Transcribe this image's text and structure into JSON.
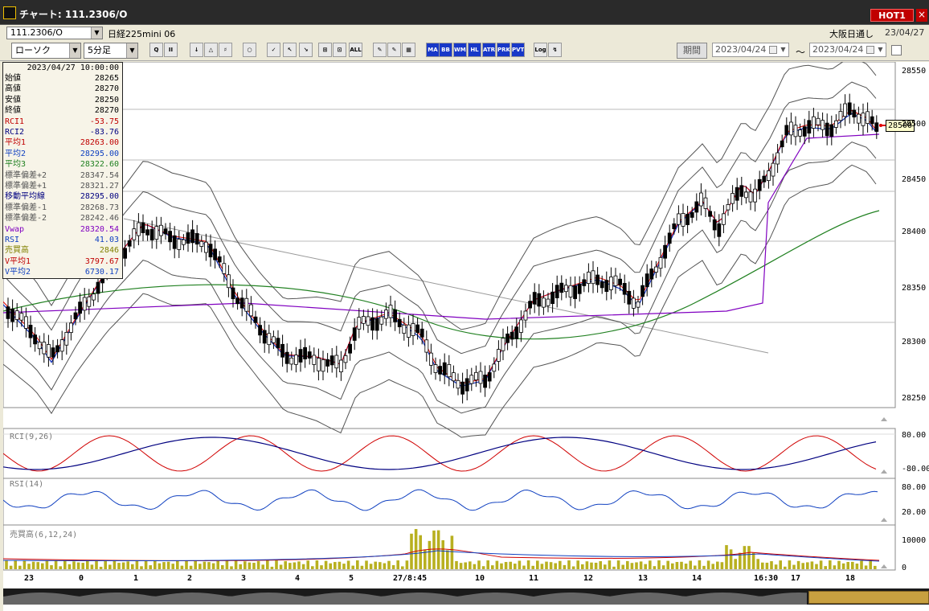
{
  "window": {
    "title": "チャート: 111.2306/O",
    "hot_label": "HOT1",
    "close": "×"
  },
  "header": {
    "symbol_code": "111.2306/O",
    "symbol_name": "日経225mini 06",
    "market": "大阪日通し",
    "date": "23/04/27"
  },
  "toolbar": {
    "chart_type": "ローソク",
    "interval": "5分足",
    "buttons": [
      "Q",
      "II",
      "↓",
      "△",
      "♯",
      "○",
      "✓",
      "↖",
      "↘",
      "⊞",
      "⊡",
      "ALL",
      "✎",
      "✎",
      "▦",
      "MA",
      "BB",
      "WMA",
      "HL",
      "ATR",
      "PRKX",
      "PVT",
      "Log",
      "↯"
    ],
    "period_label": "期間",
    "date_from": "2023/04/24",
    "date_to": "2023/04/24",
    "tilde": "〜"
  },
  "info": {
    "datetime": "2023/04/27  10:00:00",
    "rows": [
      {
        "label": "始値",
        "value": "28265",
        "color": "#000000"
      },
      {
        "label": "高値",
        "value": "28270",
        "color": "#000000"
      },
      {
        "label": "安値",
        "value": "28250",
        "color": "#000000"
      },
      {
        "label": "終値",
        "value": "28270",
        "color": "#000000"
      },
      {
        "label": "RCI1",
        "value": "-53.75",
        "color": "#c00000"
      },
      {
        "label": "RCI2",
        "value": "-83.76",
        "color": "#000080"
      },
      {
        "label": "平均1",
        "value": "28263.00",
        "color": "#c00000"
      },
      {
        "label": "平均2",
        "value": "28295.00",
        "color": "#1040c0"
      },
      {
        "label": "平均3",
        "value": "28322.60",
        "color": "#208020"
      },
      {
        "label": "標準偏差+2",
        "value": "28347.54",
        "color": "#555555"
      },
      {
        "label": "標準偏差+1",
        "value": "28321.27",
        "color": "#555555"
      },
      {
        "label": "移動平均線",
        "value": "28295.00",
        "color": "#000080"
      },
      {
        "label": "標準偏差-1",
        "value": "28268.73",
        "color": "#555555"
      },
      {
        "label": "標準偏差-2",
        "value": "28242.46",
        "color": "#555555"
      },
      {
        "label": "Vwap",
        "value": "28320.54",
        "color": "#8000c0"
      },
      {
        "label": "RSI",
        "value": "41.03",
        "color": "#1040c0"
      },
      {
        "label": "売買高",
        "value": "2846",
        "color": "#808000"
      },
      {
        "label": "V平均1",
        "value": "3797.67",
        "color": "#c00000"
      },
      {
        "label": "V平均2",
        "value": "6730.17",
        "color": "#1040c0"
      }
    ]
  },
  "price_axis": [
    "28550",
    "28500",
    "28450",
    "28400",
    "28350",
    "28300",
    "28250"
  ],
  "current_price": "28500",
  "rci_panel": {
    "label": "RCI(9,26)",
    "ticks": [
      "80.00",
      "-80.00"
    ]
  },
  "rsi_panel": {
    "label": "RSI(14)",
    "ticks": [
      "80.00",
      "20.00"
    ]
  },
  "volume_panel": {
    "label": "売買高(6,12,24)",
    "ticks": [
      "10000",
      "0"
    ]
  },
  "time_axis": [
    "23",
    "0",
    "1",
    "2",
    "3",
    "4",
    "5",
    "27/8:45",
    "10",
    "11",
    "12",
    "13",
    "14",
    "16:30",
    "17",
    "18"
  ],
  "colors": {
    "candle_up": "#ffffff",
    "candle_down": "#000000",
    "ma1": "#e00000",
    "ma2": "#1030c0",
    "ma3": "#208020",
    "vwap": "#8000c0",
    "bands": "#555555",
    "volume": "#b8b020"
  }
}
